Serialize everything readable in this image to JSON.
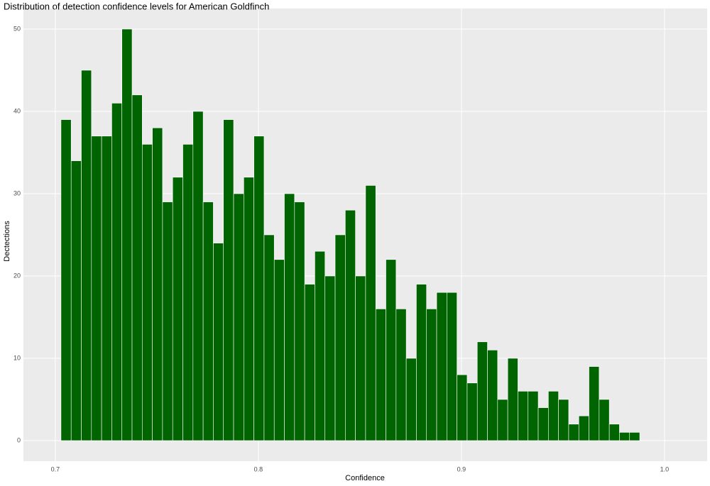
{
  "chart_data": {
    "type": "histogram",
    "title": "Distribution of detection confidence levels for American Goldfinch",
    "x_label": "Confidence",
    "y_label": "Dectections",
    "bins": [
      0.7028,
      0.7078,
      0.7128,
      0.7178,
      0.7228,
      0.7278,
      0.7328,
      0.7378,
      0.7428,
      0.7478,
      0.7528,
      0.7578,
      0.7628,
      0.7678,
      0.7728,
      0.7778,
      0.7828,
      0.7878,
      0.7928,
      0.7978,
      0.8028,
      0.8078,
      0.8128,
      0.8178,
      0.8228,
      0.8278,
      0.8328,
      0.8378,
      0.8428,
      0.8478,
      0.8528,
      0.8578,
      0.8628,
      0.8678,
      0.8728,
      0.8778,
      0.8828,
      0.8878,
      0.8928,
      0.8978,
      0.9028,
      0.9078,
      0.9128,
      0.9178,
      0.9228,
      0.9278,
      0.9328,
      0.9378,
      0.9428,
      0.9478,
      0.9528,
      0.9578,
      0.9628,
      0.9678,
      0.9728,
      0.9778,
      0.9828,
      0.9878
    ],
    "values": [
      39,
      34,
      45,
      37,
      37,
      41,
      50,
      42,
      36,
      38,
      29,
      32,
      36,
      40,
      29,
      24,
      39,
      30,
      32,
      37,
      25,
      22,
      30,
      29,
      19,
      23,
      20,
      25,
      28,
      20,
      31,
      16,
      22,
      16,
      10,
      19,
      16,
      18,
      18,
      8,
      7,
      12,
      11,
      5,
      10,
      6,
      6,
      4,
      6,
      5,
      2,
      3,
      9,
      5,
      2,
      1,
      1
    ],
    "color": "#006400",
    "xlim": [
      0.6843,
      1.021
    ],
    "xticks": [
      0.7,
      0.8,
      0.9,
      {
        "value": 1,
        "label": "1.0"
      }
    ],
    "ylim": [
      -2.5,
      52.5
    ],
    "yticks": [
      0,
      10,
      20,
      30,
      40,
      50
    ],
    "grid": true
  }
}
